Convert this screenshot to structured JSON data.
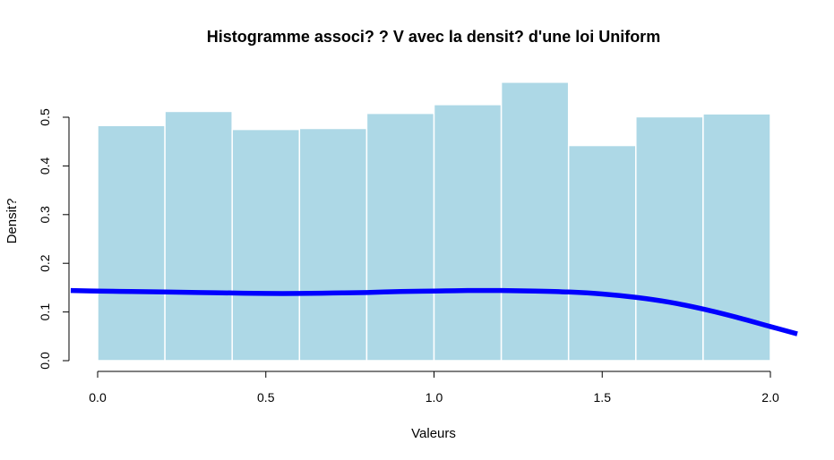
{
  "chart_data": {
    "type": "bar",
    "title": "Histogramme associ? ? V avec la densit? d'une loi Uniform",
    "xlabel": "Valeurs",
    "ylabel": "Densit?",
    "bin_edges": [
      0.0,
      0.2,
      0.4,
      0.6,
      0.8,
      1.0,
      1.2,
      1.4,
      1.6,
      1.8,
      2.0
    ],
    "values": [
      0.483,
      0.512,
      0.475,
      0.477,
      0.508,
      0.526,
      0.572,
      0.442,
      0.501,
      0.507
    ],
    "xlim": [
      -0.08,
      2.08
    ],
    "ylim": [
      0.0,
      0.5
    ],
    "x_ticks": [
      0.0,
      0.5,
      1.0,
      1.5,
      2.0
    ],
    "x_tick_labels": [
      "0.0",
      "0.5",
      "1.0",
      "1.5",
      "2.0"
    ],
    "y_ticks": [
      0.0,
      0.1,
      0.2,
      0.3,
      0.4,
      0.5
    ],
    "y_tick_labels": [
      "0.0",
      "0.1",
      "0.2",
      "0.3",
      "0.4",
      "0.5"
    ],
    "bar_color": "#add8e6",
    "bar_edge_color": "#ffffff",
    "curve": {
      "color": "#0000ff",
      "x": [
        -0.08,
        0.0,
        0.1,
        0.2,
        0.3,
        0.4,
        0.5,
        0.6,
        0.7,
        0.8,
        0.9,
        1.0,
        1.1,
        1.2,
        1.3,
        1.4,
        1.5,
        1.6,
        1.7,
        1.8,
        1.9,
        2.0,
        2.08
      ],
      "y": [
        0.144,
        0.143,
        0.142,
        0.141,
        0.14,
        0.139,
        0.138,
        0.138,
        0.139,
        0.14,
        0.142,
        0.143,
        0.144,
        0.144,
        0.143,
        0.141,
        0.137,
        0.13,
        0.12,
        0.106,
        0.089,
        0.07,
        0.055
      ]
    }
  }
}
